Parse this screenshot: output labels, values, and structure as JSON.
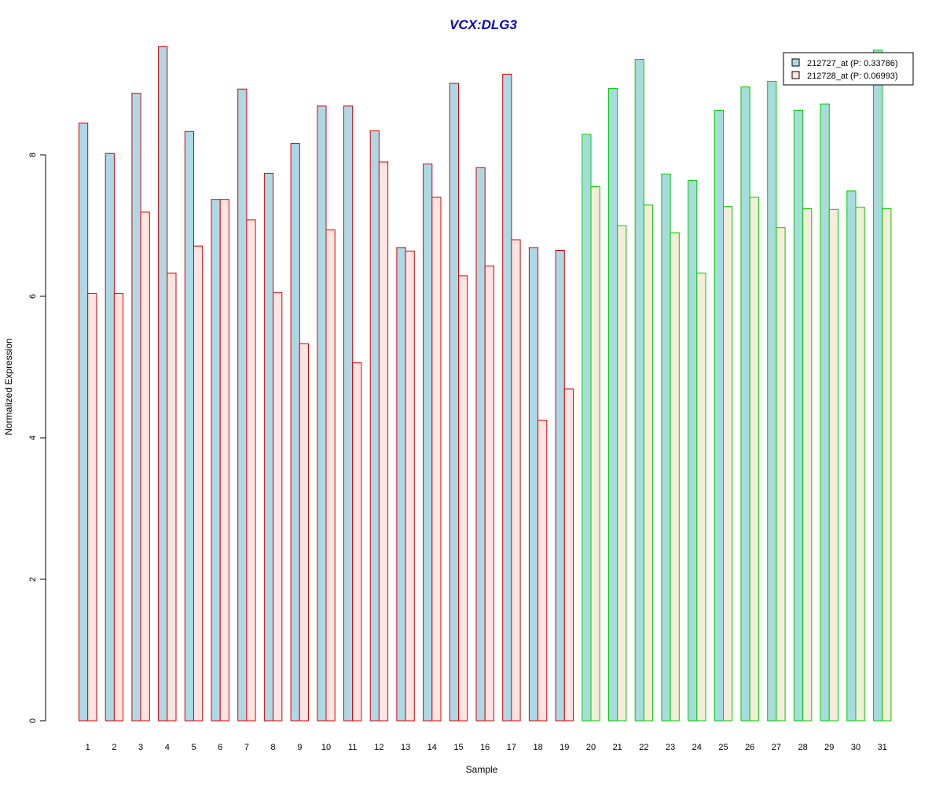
{
  "chart_data": {
    "type": "bar",
    "title": "VCX:DLG3",
    "xlabel": "Sample",
    "ylabel": "Normalized Expression",
    "ylim": [
      0,
      9.6
    ],
    "yticks": [
      "0",
      "2",
      "4",
      "6",
      "8"
    ],
    "categories": [
      "1",
      "2",
      "3",
      "4",
      "5",
      "6",
      "7",
      "8",
      "9",
      "10",
      "11",
      "12",
      "13",
      "14",
      "15",
      "16",
      "17",
      "18",
      "19",
      "20",
      "21",
      "22",
      "23",
      "24",
      "25",
      "26",
      "27",
      "28",
      "29",
      "30",
      "31"
    ],
    "group_split_after": 19,
    "group_colors": {
      "group1_border": "#dd0000",
      "group2_border": "#00cc00"
    },
    "series": [
      {
        "name": "212727_at (P: 0.33786)",
        "fill_group1": "#add8e6",
        "fill_group2": "#a6dcdc",
        "values": [
          8.45,
          8.02,
          8.87,
          9.53,
          8.33,
          7.37,
          8.93,
          7.74,
          8.16,
          8.69,
          8.69,
          8.34,
          6.69,
          7.87,
          9.01,
          7.82,
          9.14,
          6.69,
          6.65,
          8.29,
          8.94,
          9.35,
          7.73,
          7.64,
          8.63,
          8.96,
          9.04,
          8.63,
          8.72,
          7.49,
          9.48
        ]
      },
      {
        "name": "212728_at (P: 0.06993)",
        "fill_group1": "#ffe4e1",
        "fill_group2": "#f5ecd9",
        "values": [
          6.04,
          6.04,
          7.19,
          6.33,
          6.71,
          7.37,
          7.08,
          6.05,
          5.33,
          6.94,
          5.06,
          7.9,
          6.64,
          7.4,
          6.29,
          6.43,
          6.8,
          4.25,
          4.69,
          7.55,
          7.0,
          7.29,
          6.9,
          6.33,
          7.27,
          7.4,
          6.97,
          7.24,
          7.23,
          7.26,
          7.24
        ]
      }
    ],
    "legend_position": "top-right"
  }
}
